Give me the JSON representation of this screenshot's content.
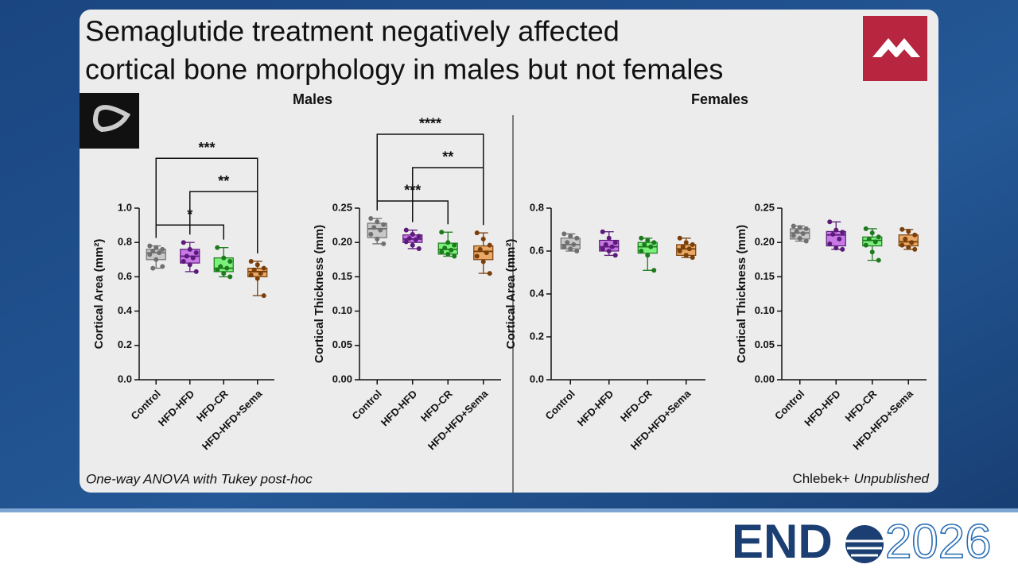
{
  "slide": {
    "title_lines": [
      "Semaglutide treatment negatively affected",
      "cortical bone morphology in males but not females"
    ],
    "panels": [
      "Males",
      "Females"
    ],
    "footnote_left": "One-way ANOVA with Tukey post-hoc",
    "footnote_right_author": "Chlebek+",
    "footnote_right_status": "Unpublished",
    "logo_left": "END",
    "logo_right": "2026"
  },
  "chart_data": [
    {
      "type": "box",
      "ylabel": "Cortical Area (mm²)",
      "categories": [
        "Control",
        "HFD-HFD",
        "HFD-CR",
        "HFD-HFD+Sema"
      ],
      "colors": [
        "#c8c8c8",
        "#c879e6",
        "#7cf07c",
        "#e9a865"
      ],
      "point_colors": [
        "#707070",
        "#5c1a7a",
        "#1d7a1d",
        "#7a3f0a"
      ],
      "ylim": [
        0,
        1.0
      ],
      "yticks": [
        {
          "value": 0,
          "label": "0.0"
        },
        0.2,
        0.4,
        0.6,
        0.8,
        {
          "value": 1.0,
          "label": "1.0"
        }
      ],
      "boxes": [
        {
          "min": 0.65,
          "q1": 0.7,
          "median": 0.74,
          "q3": 0.76,
          "max": 0.78
        },
        {
          "min": 0.63,
          "q1": 0.68,
          "median": 0.72,
          "q3": 0.76,
          "max": 0.8
        },
        {
          "min": 0.6,
          "q1": 0.63,
          "median": 0.65,
          "q3": 0.71,
          "max": 0.77
        },
        {
          "min": 0.49,
          "q1": 0.6,
          "median": 0.63,
          "q3": 0.65,
          "max": 0.69
        }
      ],
      "points": [
        [
          0.78,
          0.77,
          0.76,
          0.75,
          0.74,
          0.73,
          0.7,
          0.66,
          0.65
        ],
        [
          0.8,
          0.76,
          0.74,
          0.72,
          0.71,
          0.69,
          0.67,
          0.63
        ],
        [
          0.77,
          0.71,
          0.69,
          0.66,
          0.65,
          0.64,
          0.62,
          0.6
        ],
        [
          0.69,
          0.67,
          0.65,
          0.64,
          0.62,
          0.61,
          0.59,
          0.49
        ]
      ],
      "comparisons": [
        {
          "from": "Control",
          "to": "HFD-CR",
          "label": "*"
        },
        {
          "from": "HFD-HFD",
          "to": "HFD-HFD+Sema",
          "label": "**"
        },
        {
          "from": "Control",
          "to": "HFD-HFD+Sema",
          "label": "***"
        }
      ]
    },
    {
      "type": "box",
      "ylabel": "Cortical Thickness (mm)",
      "categories": [
        "Control",
        "HFD-HFD",
        "HFD-CR",
        "HFD-HFD+Sema"
      ],
      "colors": [
        "#c8c8c8",
        "#c879e6",
        "#7cf07c",
        "#e9a865"
      ],
      "point_colors": [
        "#707070",
        "#5c1a7a",
        "#1d7a1d",
        "#7a3f0a"
      ],
      "ylim": [
        0,
        0.25
      ],
      "yticks": [
        {
          "value": 0,
          "label": "0.00"
        },
        0.05,
        {
          "value": 0.1,
          "label": "0.10"
        },
        0.15,
        {
          "value": 0.2,
          "label": "0.20"
        },
        0.25
      ],
      "boxes": [
        {
          "min": 0.198,
          "q1": 0.207,
          "median": 0.22,
          "q3": 0.228,
          "max": 0.235
        },
        {
          "min": 0.191,
          "q1": 0.2,
          "median": 0.205,
          "q3": 0.211,
          "max": 0.218
        },
        {
          "min": 0.18,
          "q1": 0.183,
          "median": 0.19,
          "q3": 0.199,
          "max": 0.215
        },
        {
          "min": 0.155,
          "q1": 0.175,
          "median": 0.187,
          "q3": 0.195,
          "max": 0.214
        }
      ],
      "points": [
        [
          0.235,
          0.23,
          0.226,
          0.222,
          0.218,
          0.212,
          0.205,
          0.198
        ],
        [
          0.218,
          0.212,
          0.209,
          0.206,
          0.204,
          0.201,
          0.196,
          0.191
        ],
        [
          0.215,
          0.2,
          0.196,
          0.192,
          0.189,
          0.186,
          0.183,
          0.18
        ],
        [
          0.214,
          0.205,
          0.196,
          0.19,
          0.185,
          0.18,
          0.172,
          0.155
        ]
      ],
      "comparisons": [
        {
          "from": "Control",
          "to": "HFD-CR",
          "label": "***"
        },
        {
          "from": "HFD-HFD",
          "to": "HFD-HFD+Sema",
          "label": "**"
        },
        {
          "from": "Control",
          "to": "HFD-HFD+Sema",
          "label": "****"
        }
      ]
    },
    {
      "type": "box",
      "ylabel": "Cortical Area (mm²)",
      "categories": [
        "Control",
        "HFD-HFD",
        "HFD-CR",
        "HFD-HFD+Sema"
      ],
      "colors": [
        "#c8c8c8",
        "#c879e6",
        "#7cf07c",
        "#e9a865"
      ],
      "point_colors": [
        "#707070",
        "#5c1a7a",
        "#1d7a1d",
        "#7a3f0a"
      ],
      "ylim": [
        0,
        0.8
      ],
      "yticks": [
        {
          "value": 0,
          "label": "0.0"
        },
        0.2,
        0.4,
        0.6,
        0.8
      ],
      "boxes": [
        {
          "min": 0.6,
          "q1": 0.61,
          "median": 0.63,
          "q3": 0.66,
          "max": 0.68
        },
        {
          "min": 0.58,
          "q1": 0.6,
          "median": 0.62,
          "q3": 0.65,
          "max": 0.69
        },
        {
          "min": 0.51,
          "q1": 0.59,
          "median": 0.62,
          "q3": 0.64,
          "max": 0.66
        },
        {
          "min": 0.57,
          "q1": 0.58,
          "median": 0.61,
          "q3": 0.63,
          "max": 0.66
        }
      ],
      "points": [
        [
          0.68,
          0.67,
          0.66,
          0.64,
          0.63,
          0.62,
          0.61,
          0.6
        ],
        [
          0.69,
          0.66,
          0.64,
          0.63,
          0.62,
          0.61,
          0.6,
          0.58
        ],
        [
          0.66,
          0.65,
          0.64,
          0.63,
          0.62,
          0.6,
          0.58,
          0.51
        ],
        [
          0.66,
          0.64,
          0.63,
          0.62,
          0.61,
          0.6,
          0.58,
          0.57
        ]
      ]
    },
    {
      "type": "box",
      "ylabel": "Cortical Thickness (mm)",
      "categories": [
        "Control",
        "HFD-HFD",
        "HFD-CR",
        "HFD-HFD+Sema"
      ],
      "colors": [
        "#c8c8c8",
        "#c879e6",
        "#7cf07c",
        "#e9a865"
      ],
      "point_colors": [
        "#707070",
        "#5c1a7a",
        "#1d7a1d",
        "#7a3f0a"
      ],
      "ylim": [
        0,
        0.25
      ],
      "yticks": [
        {
          "value": 0,
          "label": "0.00"
        },
        0.05,
        {
          "value": 0.1,
          "label": "0.10"
        },
        0.15,
        {
          "value": 0.2,
          "label": "0.20"
        },
        0.25
      ],
      "boxes": [
        {
          "min": 0.202,
          "q1": 0.205,
          "median": 0.214,
          "q3": 0.22,
          "max": 0.224
        },
        {
          "min": 0.19,
          "q1": 0.195,
          "median": 0.211,
          "q3": 0.216,
          "max": 0.23
        },
        {
          "min": 0.174,
          "q1": 0.195,
          "median": 0.203,
          "q3": 0.208,
          "max": 0.22
        },
        {
          "min": 0.19,
          "q1": 0.195,
          "median": 0.201,
          "q3": 0.211,
          "max": 0.219
        }
      ],
      "points": [
        [
          0.224,
          0.222,
          0.22,
          0.216,
          0.213,
          0.21,
          0.206,
          0.202
        ],
        [
          0.23,
          0.218,
          0.215,
          0.212,
          0.205,
          0.198,
          0.192,
          0.19
        ],
        [
          0.22,
          0.214,
          0.208,
          0.205,
          0.201,
          0.196,
          0.186,
          0.174
        ],
        [
          0.219,
          0.216,
          0.211,
          0.205,
          0.2,
          0.196,
          0.193,
          0.19
        ]
      ]
    }
  ]
}
